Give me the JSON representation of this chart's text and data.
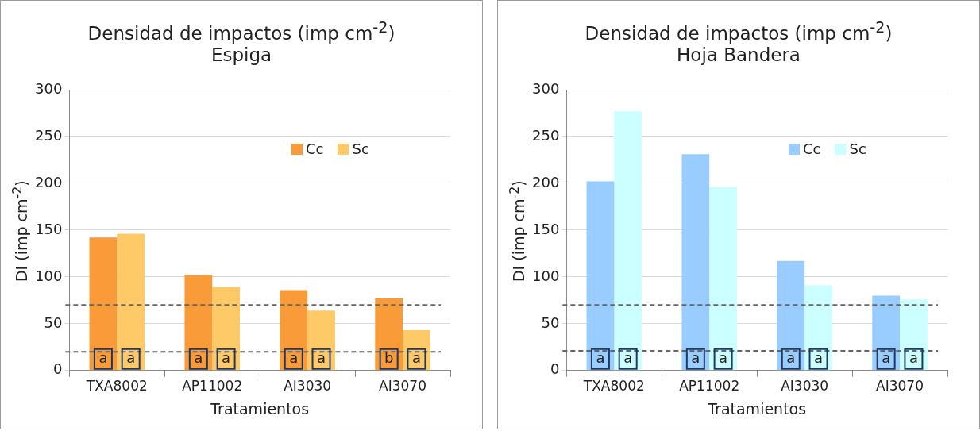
{
  "chart_data": [
    {
      "type": "bar",
      "title": "Densidad de impactos (imp cm$^{-2}$)",
      "subtitle": "Espiga",
      "xlabel": "Tratamientos",
      "ylabel": "DI (imp cm$^{-2}$)",
      "categories": [
        "TXA8002",
        "AP11002",
        "AI3030",
        "AI3070"
      ],
      "series": [
        {
          "name": "Cc",
          "color": "#f99b38",
          "values": [
            142,
            102,
            86,
            77
          ]
        },
        {
          "name": "Sc",
          "color": "#fec967",
          "values": [
            146,
            89,
            64,
            43
          ]
        }
      ],
      "ylim": [
        0,
        300
      ],
      "yticks": [
        0,
        50,
        100,
        150,
        200,
        250,
        300
      ],
      "grid": "y",
      "legend": "top right",
      "ref_lines": [
        {
          "axis": "y",
          "value": 70,
          "color": "#666666",
          "line_style": "dashed"
        },
        {
          "axis": "y",
          "value": 20,
          "color": "#666666",
          "line_style": "dashed"
        }
      ],
      "annotations": [
        {
          "text": "a",
          "x": "TXA8002",
          "y": 12
        },
        {
          "text": "a",
          "x": "TXA8002",
          "y": 12
        },
        {
          "text": "a",
          "x": "AP11002",
          "y": 12
        },
        {
          "text": "a",
          "x": "AP11002",
          "y": 12
        },
        {
          "text": "a",
          "x": "AI3030",
          "y": 12
        },
        {
          "text": "a",
          "x": "AI3030",
          "y": 12
        },
        {
          "text": "b",
          "x": "AI3070",
          "y": 12
        },
        {
          "text": "a",
          "x": "AI3070",
          "y": 12
        }
      ]
    },
    {
      "type": "bar",
      "title": "Densidad de impactos (imp cm$^{-2}$)",
      "subtitle": "Hoja Bandera",
      "xlabel": "Tratamientos",
      "ylabel": "DI (imp cm$^{-2}$)",
      "categories": [
        "TXA8002",
        "AP11002",
        "AI3030",
        "AI3070"
      ],
      "series": [
        {
          "name": "Cc",
          "color": "#99ccff",
          "values": [
            202,
            231,
            117,
            80
          ]
        },
        {
          "name": "Sc",
          "color": "#ccffff",
          "values": [
            277,
            196,
            91,
            76
          ]
        }
      ],
      "ylim": [
        0,
        300
      ],
      "yticks": [
        0,
        50,
        100,
        150,
        200,
        250,
        300
      ],
      "grid": "y",
      "legend": "top right",
      "ref_lines": [
        {
          "axis": "y",
          "value": 70,
          "color": "#666666",
          "line_style": "dashed"
        },
        {
          "axis": "y",
          "value": 21,
          "color": "#666666",
          "line_style": "dashed"
        }
      ],
      "annotations": [
        {
          "text": "a",
          "x": "TXA8002",
          "y": 12
        },
        {
          "text": "a",
          "x": "TXA8002",
          "y": 12
        },
        {
          "text": "a",
          "x": "AP11002",
          "y": 12
        },
        {
          "text": "a",
          "x": "AP11002",
          "y": 12
        },
        {
          "text": "a",
          "x": "AI3030",
          "y": 12
        },
        {
          "text": "a",
          "x": "AI3030",
          "y": 12
        },
        {
          "text": "a",
          "x": "AI3070",
          "y": 12
        },
        {
          "text": "a",
          "x": "AI3070",
          "y": 12
        }
      ]
    }
  ]
}
